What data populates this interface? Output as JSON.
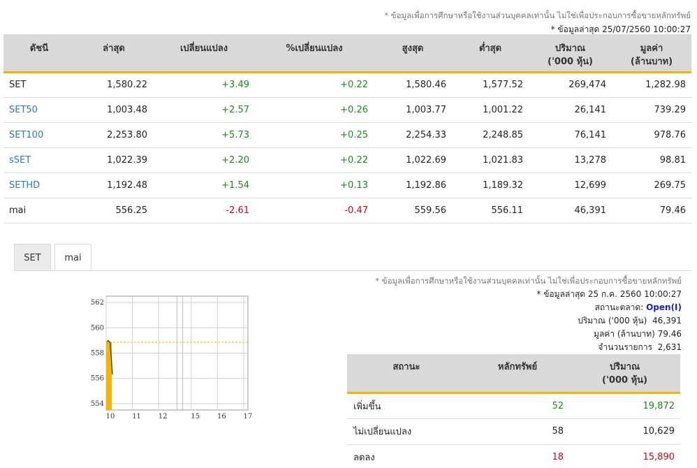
{
  "top": {
    "disclaimer": "* ข้อมูลเพื่อการศึกษาหรือใช้งานส่วนบุคคลเท่านั้น ไม่ใช่เพื่อประกอบการซื้อขายหลักทรัพย์",
    "updated": "* ข้อมูลล่าสุด 25/07/2560 10:00:27"
  },
  "index_table": {
    "headers": [
      "ดัชนี",
      "ล่าสุด",
      "เปลี่ยนแปลง",
      "%เปลี่ยนแปลง",
      "สูงสุด",
      "ต่ำสุด",
      [
        "ปริมาณ",
        "('000 หุ้น)"
      ],
      [
        "มูลค่า",
        "(ล้านบาท)"
      ]
    ],
    "rows": [
      {
        "name": "SET",
        "last": "1,580.22",
        "change": "+3.49",
        "pct": "+0.22",
        "high": "1,580.46",
        "low": "1,577.52",
        "volume": "269,474",
        "value": "1,282.98",
        "link": false,
        "dir": "pos"
      },
      {
        "name": "SET50",
        "last": "1,003.48",
        "change": "+2.57",
        "pct": "+0.26",
        "high": "1,003.77",
        "low": "1,001.22",
        "volume": "26,141",
        "value": "739.29",
        "link": true,
        "dir": "pos"
      },
      {
        "name": "SET100",
        "last": "2,253.80",
        "change": "+5.73",
        "pct": "+0.25",
        "high": "2,254.33",
        "low": "2,248.85",
        "volume": "76,141",
        "value": "978.76",
        "link": true,
        "dir": "pos"
      },
      {
        "name": "sSET",
        "last": "1,022.39",
        "change": "+2.20",
        "pct": "+0.22",
        "high": "1,022.69",
        "low": "1,021.83",
        "volume": "13,278",
        "value": "98.81",
        "link": true,
        "dir": "pos"
      },
      {
        "name": "SETHD",
        "last": "1,192.48",
        "change": "+1.54",
        "pct": "+0.13",
        "high": "1,192.86",
        "low": "1,189.32",
        "volume": "12,699",
        "value": "269.75",
        "link": true,
        "dir": "pos"
      },
      {
        "name": "mai",
        "last": "556.25",
        "change": "-2.61",
        "pct": "-0.47",
        "high": "559.56",
        "low": "556.11",
        "volume": "46,391",
        "value": "79.46",
        "link": false,
        "dir": "neg"
      }
    ]
  },
  "tabs": {
    "set": "SET",
    "mai": "mai",
    "active": "mai"
  },
  "chart_data": {
    "type": "line",
    "x_ticks": [
      "10",
      "11",
      "12",
      "15",
      "16",
      "17"
    ],
    "y_ticks": [
      554,
      556,
      558,
      560,
      562
    ],
    "ylim": [
      553.5,
      562.5
    ],
    "prev_close": 558.86,
    "series": [
      {
        "values": [
          [
            0.0,
            558.9
          ],
          [
            0.05,
            559.0
          ],
          [
            0.12,
            558.8
          ],
          [
            0.2,
            556.3
          ]
        ]
      }
    ],
    "colors": {
      "line": "#444444",
      "volume": "#f5b400",
      "prev_close": "#f5b400"
    }
  },
  "info": {
    "disclaimer": "* ข้อมูลเพื่อการศึกษาหรือใช้งานส่วนบุคคลเท่านั้น ไม่ใช่เพื่อประกอบการซื้อขายหลักทรัพย์",
    "updated": "* ข้อมูลล่าสุด 25 ก.ค. 2560 10:00:27",
    "market_status_label": "สถานะตลาด:",
    "market_status": "Open(I)",
    "volume_label": "ปริมาณ ('000 หุ้น)",
    "volume": "46,391",
    "value_label": "มูลค่า (ล้านบาท)",
    "value": "79.46",
    "trades_label": "จำนวนรายการ",
    "trades": "2,631"
  },
  "stat_table": {
    "headers": [
      "สถานะ",
      "หลักทรัพย์",
      [
        "ปริมาณ",
        "('000 หุ้น)"
      ]
    ],
    "rows": [
      {
        "label": "เพิ่มขึ้น",
        "count": "52",
        "volume": "19,872",
        "dir": "pos"
      },
      {
        "label": "ไม่เปลี่ยนแปลง",
        "count": "58",
        "volume": "10,629",
        "dir": ""
      },
      {
        "label": "ลดลง",
        "count": "18",
        "volume": "15,890",
        "dir": "neg"
      }
    ]
  }
}
